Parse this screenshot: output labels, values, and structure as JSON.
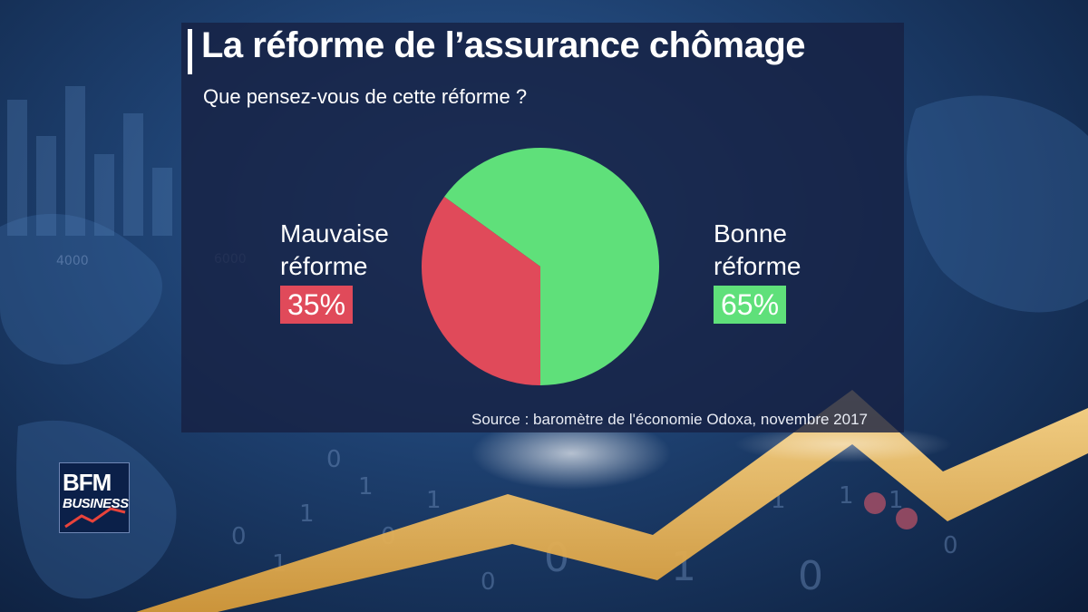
{
  "colors": {
    "negative": "#e04a5a",
    "positive": "#5fe07a",
    "panel": "#162042"
  },
  "logo": {
    "name_top": "BFM",
    "name_bottom": "BUSINESS"
  },
  "chart_data": {
    "type": "pie",
    "title": "La réforme de l’assurance chômage",
    "subtitle": "Que pensez-vous de cette réforme ?",
    "slices": [
      {
        "label": "Bonne réforme",
        "label_lines": [
          "Bonne",
          "réforme"
        ],
        "value": 65,
        "value_label": "65%",
        "color": "#5fe07a"
      },
      {
        "label": "Mauvaise réforme",
        "label_lines": [
          "Mauvaise",
          "réforme"
        ],
        "value": 35,
        "value_label": "35%",
        "color": "#e04a5a"
      }
    ],
    "source": "Source : baromètre de l'économie Odoxa, novembre 2017"
  }
}
